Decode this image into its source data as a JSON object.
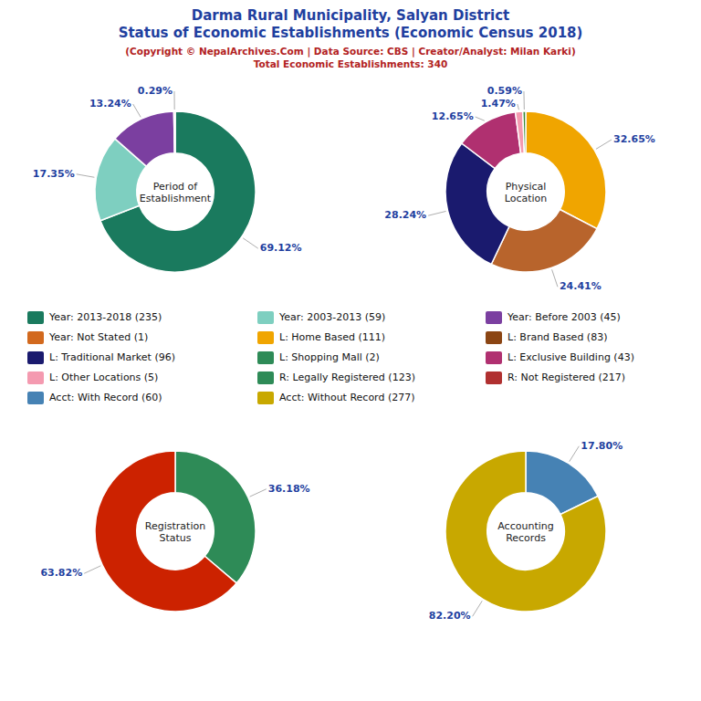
{
  "title": [
    "Darma Rural Municipality, Salyan District",
    "Status of Economic Establishments (Economic Census 2018)"
  ],
  "subtitle": [
    "(Copyright © NepalArchives.Com | Data Source: CBS | Creator/Analyst: Milan Karki)",
    "Total Economic Establishments: 340"
  ],
  "chart_data": [
    {
      "type": "pie",
      "title": "Period of\nEstablishment",
      "values": [
        69.12,
        17.35,
        13.24,
        0.29
      ],
      "value_labels": [
        "69.12%",
        "17.35%",
        "13.24%",
        "0.29%"
      ],
      "colors": [
        "#1a7a5e",
        "#7ecfc0",
        "#7b3fa0",
        "#d2691e"
      ],
      "data_labels": true
    },
    {
      "type": "pie",
      "title": "Physical\nLocation",
      "values": [
        32.65,
        24.41,
        28.24,
        12.65,
        1.47,
        0.59
      ],
      "value_labels": [
        "32.65%",
        "24.41%",
        "28.24%",
        "12.65%",
        "1.47%",
        "0.59%"
      ],
      "colors": [
        "#f0a500",
        "#b8642c",
        "#1a1a6e",
        "#b03070",
        "#f49ab0",
        "#3a8a3a"
      ],
      "data_labels": true
    },
    {
      "type": "pie",
      "title": "Registration\nStatus",
      "values": [
        36.18,
        63.82
      ],
      "value_labels": [
        "36.18%",
        "63.82%"
      ],
      "colors": [
        "#2e8b57",
        "#cc2200"
      ],
      "data_labels": true
    },
    {
      "type": "pie",
      "title": "Accounting\nRecords",
      "values": [
        17.8,
        82.2
      ],
      "value_labels": [
        "17.80%",
        "82.20%"
      ],
      "colors": [
        "#4682b4",
        "#c8a800"
      ],
      "data_labels": true
    }
  ],
  "annotations": [
    {
      "label": "Year: 2013-2018 (235)",
      "color": "#1a7a5e"
    },
    {
      "label": "Year: 2003-2013 (59)",
      "color": "#7ecfc0"
    },
    {
      "label": "Year: Before 2003 (45)",
      "color": "#7b3fa0"
    },
    {
      "label": "Year: Not Stated (1)",
      "color": "#d2691e"
    },
    {
      "label": "L: Home Based (111)",
      "color": "#f0a500"
    },
    {
      "label": "L: Brand Based (83)",
      "color": "#8b4513"
    },
    {
      "label": "L: Traditional Market (96)",
      "color": "#1a1a6e"
    },
    {
      "label": "L: Shopping Mall (2)",
      "color": "#2e8b57"
    },
    {
      "label": "L: Exclusive Building (43)",
      "color": "#b03070"
    },
    {
      "label": "L: Other Locations (5)",
      "color": "#f49ab0"
    },
    {
      "label": "R: Legally Registered (123)",
      "color": "#2e8b57"
    },
    {
      "label": "R: Not Registered (217)",
      "color": "#b03030"
    },
    {
      "label": "Acct: With Record (60)",
      "color": "#4682b4"
    },
    {
      "label": "Acct: Without Record (277)",
      "color": "#c8a800"
    }
  ]
}
